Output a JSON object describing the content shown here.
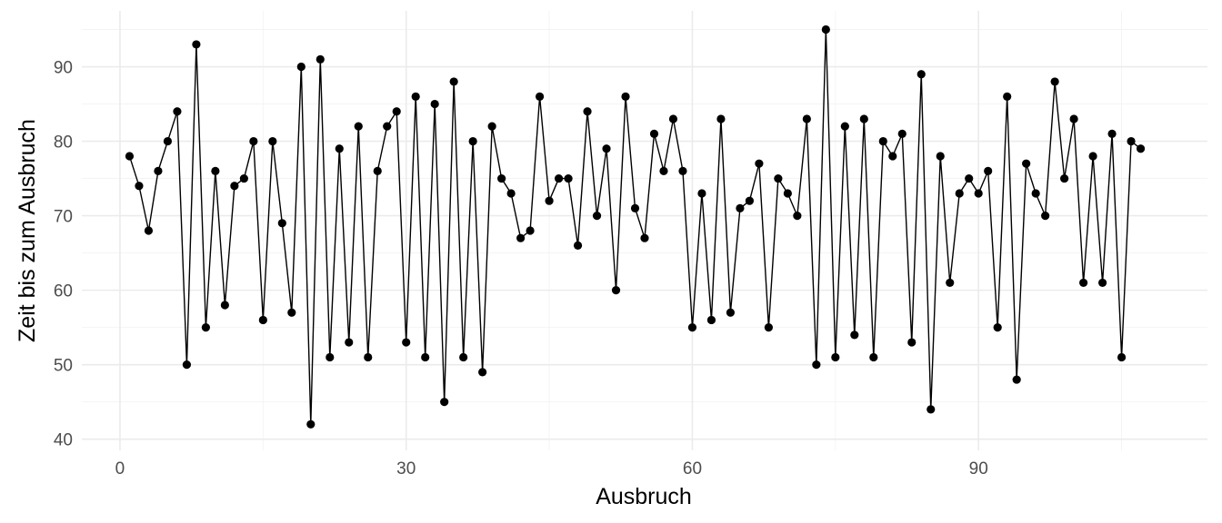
{
  "chart_data": {
    "type": "line",
    "title": "",
    "xlabel": "Ausbruch",
    "ylabel": "Zeit bis zum Ausbruch",
    "xlim": [
      -4,
      114
    ],
    "ylim": [
      38.5,
      97.5
    ],
    "x_ticks": [
      0,
      30,
      60,
      90
    ],
    "y_ticks": [
      40,
      50,
      60,
      70,
      80,
      90
    ],
    "x_tick_labels": [
      "0",
      "30",
      "60",
      "90"
    ],
    "y_tick_labels": [
      "40",
      "50",
      "60",
      "70",
      "80",
      "90"
    ],
    "grid": true,
    "legend": "none",
    "color": "#000000",
    "x": [
      1,
      2,
      3,
      4,
      5,
      6,
      7,
      8,
      9,
      10,
      11,
      12,
      13,
      14,
      15,
      16,
      17,
      18,
      19,
      20,
      21,
      22,
      23,
      24,
      25,
      26,
      27,
      28,
      29,
      30,
      31,
      32,
      33,
      34,
      35,
      36,
      37,
      38,
      39,
      40,
      41,
      42,
      43,
      44,
      45,
      46,
      47,
      48,
      49,
      50,
      51,
      52,
      53,
      54,
      55,
      56,
      57,
      58,
      59,
      60,
      61,
      62,
      63,
      64,
      65,
      66,
      67,
      68,
      69,
      70,
      71,
      72,
      73,
      74,
      75,
      76,
      77,
      78,
      79,
      80,
      81,
      82,
      83,
      84,
      85,
      86,
      87,
      88,
      89,
      90,
      91,
      92,
      93,
      94,
      95,
      96,
      97,
      98,
      99,
      100,
      101,
      102,
      103,
      104,
      105,
      106,
      107
    ],
    "y": [
      78,
      74,
      68,
      76,
      80,
      84,
      50,
      93,
      55,
      76,
      58,
      74,
      75,
      80,
      56,
      80,
      69,
      57,
      90,
      42,
      91,
      51,
      79,
      53,
      82,
      51,
      76,
      82,
      84,
      53,
      86,
      51,
      85,
      45,
      88,
      51,
      80,
      49,
      82,
      75,
      73,
      67,
      68,
      86,
      72,
      75,
      75,
      66,
      84,
      70,
      79,
      60,
      86,
      71,
      67,
      81,
      76,
      83,
      76,
      55,
      73,
      56,
      83,
      57,
      71,
      72,
      77,
      55,
      75,
      73,
      70,
      83,
      50,
      95,
      51,
      82,
      54,
      83,
      51,
      80,
      78,
      81,
      53,
      89,
      44,
      78,
      61,
      73,
      75,
      73,
      76,
      55,
      86,
      48,
      77,
      73,
      70,
      88,
      75,
      83,
      61,
      78,
      61,
      81,
      51,
      80,
      79
    ]
  }
}
